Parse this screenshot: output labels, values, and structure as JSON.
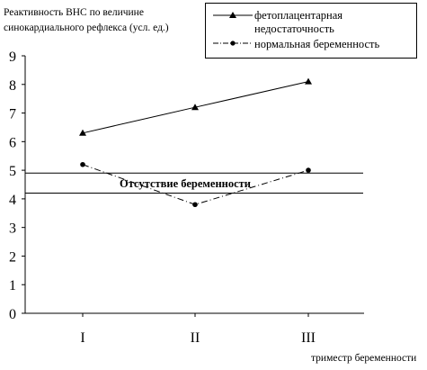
{
  "chart_data": {
    "type": "line",
    "ylabel_line1": "Реактивность ВНС по величине",
    "ylabel_line2": "синокардиального рефлекса (усл. ед.)",
    "xlabel": "триместр беременности",
    "categories": [
      "I",
      "II",
      "III"
    ],
    "ylim": [
      0,
      9
    ],
    "yticks": [
      "0",
      "1",
      "2",
      "3",
      "4",
      "5",
      "6",
      "7",
      "8",
      "9"
    ],
    "series": [
      {
        "name_line1": "фетоплацентарная",
        "name_line2": "недостаточность",
        "values": [
          6.3,
          7.2,
          8.1
        ],
        "marker": "triangle",
        "line_style": "solid"
      },
      {
        "name": "нормальная беременность",
        "values": [
          5.2,
          3.8,
          5.0
        ],
        "marker": "circle",
        "line_style": "dash-dot"
      }
    ],
    "reference_band": {
      "label": "Отсутствие беременности",
      "low": 4.2,
      "high": 4.9
    },
    "legend_position": "top-right",
    "grid": false
  }
}
